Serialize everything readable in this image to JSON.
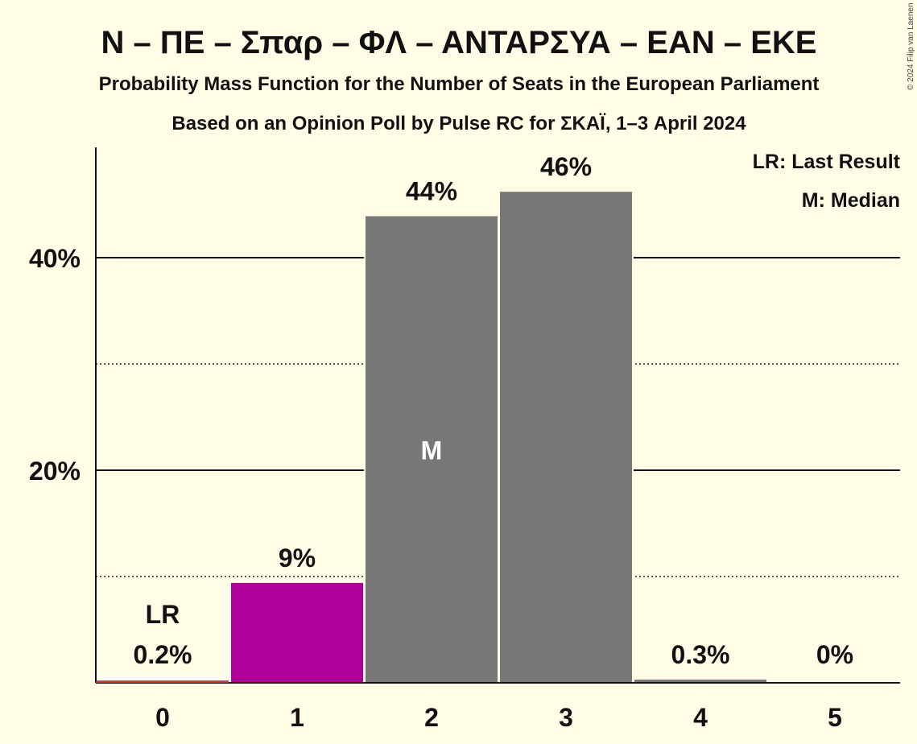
{
  "chart_data": {
    "type": "bar",
    "title": "N – ΠΕ – Σπαρ – ΦΛ – ΑΝΤΑΡΣΥΑ – ΕΑΝ – ΕΚΕ",
    "subtitle": "Probability Mass Function for the Number of Seats in the European Parliament",
    "subtitle2": "Based on an Opinion Poll by Pulse RC for ΣΚΑΪ, 1–3 April 2024",
    "legend": [
      "LR: Last Result",
      "M: Median"
    ],
    "legend_position": "top-right",
    "categories": [
      "0",
      "1",
      "2",
      "3",
      "4",
      "5"
    ],
    "values": [
      0.2,
      9.4,
      43.9,
      46.2,
      0.3,
      0
    ],
    "value_labels": [
      "0.2%",
      "9%",
      "44%",
      "46%",
      "0.3%",
      "0%"
    ],
    "bar_colors": [
      "#b0009a",
      "#b0009a",
      "#777777",
      "#777777",
      "#777777",
      "#777777"
    ],
    "baseline_color": "#c0392b",
    "last_result_index": 0,
    "last_result_label": "LR",
    "median_index": 2,
    "median_label": "M",
    "y_ticks": [
      20,
      40
    ],
    "y_tick_labels": [
      "20%",
      "40%"
    ],
    "y_minor_ticks": [
      10,
      30
    ],
    "ylim": [
      0,
      50
    ],
    "grid": true,
    "copyright": "© 2024 Filip van Laenen"
  }
}
